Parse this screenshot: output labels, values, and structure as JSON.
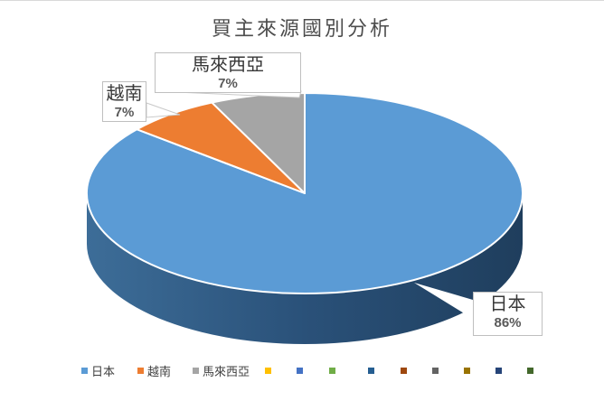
{
  "window": {
    "background": "#FFFFFF",
    "top_border_color": "#D9D9D9"
  },
  "chart": {
    "title": "買主來源國別分析",
    "title_color": "#4D4D4D"
  },
  "chart_data": {
    "type": "pie",
    "style": "pie-3d",
    "title": "買主來源國別分析",
    "unit": "percent",
    "labels": [
      "日本",
      "越南",
      "馬來西亞"
    ],
    "values": [
      86,
      7,
      7
    ],
    "series": [
      {
        "label": "日本",
        "value": 86,
        "pct_label": "86%",
        "color": "#5B9BD5"
      },
      {
        "label": "越南",
        "value": 7,
        "pct_label": "7%",
        "color": "#ED7D31"
      },
      {
        "label": "馬來西亞",
        "value": 7,
        "pct_label": "7%",
        "color": "#A5A5A5"
      }
    ],
    "data_label_format": "category name + percentage, in white callout boxes with gray borders",
    "side_gradient": [
      "#3D6D98",
      "#2A5179",
      "#1F3E5D"
    ],
    "slice_border_color": "#FFFFFF",
    "legend_position": "bottom"
  },
  "legend": {
    "items": [
      {
        "label": "日本",
        "color": "#5B9BD5"
      },
      {
        "label": "越南",
        "color": "#ED7D31"
      },
      {
        "label": "馬來西亞",
        "color": "#A5A5A5"
      },
      {
        "label": "",
        "color": "#FFC000"
      },
      {
        "label": "",
        "color": "#4472C4"
      },
      {
        "label": "",
        "color": "#70AD47"
      },
      {
        "label": "",
        "color": "#255E91"
      },
      {
        "label": "",
        "color": "#9E480E"
      },
      {
        "label": "",
        "color": "#636363"
      },
      {
        "label": "",
        "color": "#997300"
      },
      {
        "label": "",
        "color": "#264478"
      },
      {
        "label": "",
        "color": "#43682B"
      }
    ]
  }
}
